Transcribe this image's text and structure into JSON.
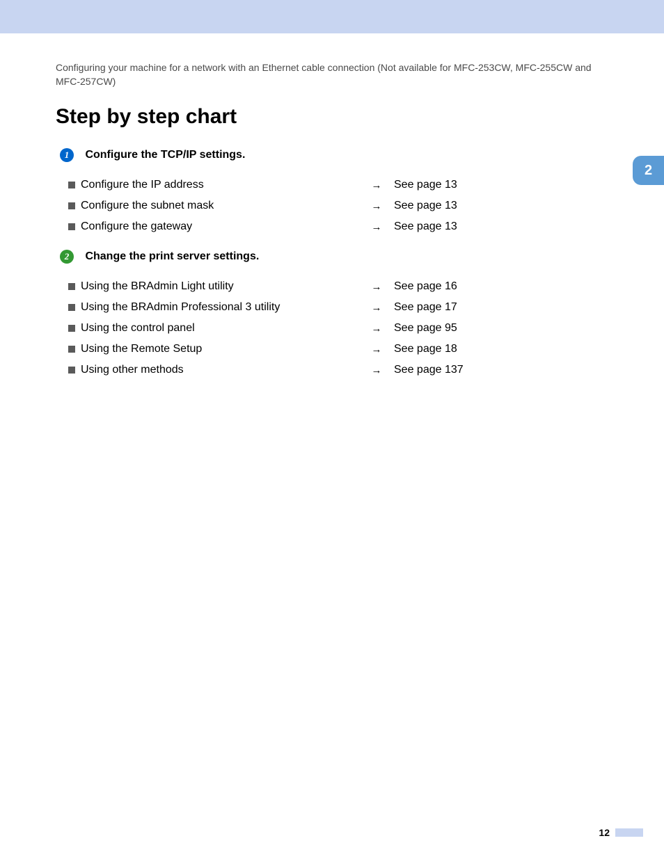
{
  "colors": {
    "top_bar": "#c8d5f1",
    "badge_blue": "#0066cc",
    "badge_green": "#339933",
    "side_tab": "#5b9bd5",
    "square_bullet": "#5a5a5a",
    "text_main": "#000000",
    "text_breadcrumb": "#4a4a4a"
  },
  "breadcrumb": "Configuring your machine for a network with an Ethernet cable connection (Not available for MFC-253CW, MFC-255CW and MFC-257CW)",
  "heading": "Step by step chart",
  "side_tab": "2",
  "page_number": "12",
  "sections": [
    {
      "badge_num": "1",
      "badge_color": "#0066cc",
      "title": "Configure the TCP/IP settings.",
      "items": [
        {
          "label": "Configure the IP address",
          "arrow": "→",
          "ref": "See page 13"
        },
        {
          "label": "Configure the subnet mask",
          "arrow": "→",
          "ref": "See page 13"
        },
        {
          "label": "Configure the gateway",
          "arrow": "→",
          "ref": "See page 13"
        }
      ]
    },
    {
      "badge_num": "2",
      "badge_color": "#339933",
      "title": "Change the print server settings.",
      "items": [
        {
          "label": "Using the BRAdmin Light utility",
          "arrow": "→",
          "ref": "See page 16"
        },
        {
          "label": "Using the BRAdmin Professional 3 utility",
          "arrow": "→",
          "ref": "See page 17"
        },
        {
          "label": "Using the control panel",
          "arrow": "→",
          "ref": "See page 95"
        },
        {
          "label": "Using the Remote Setup",
          "arrow": "→",
          "ref": "See page 18"
        },
        {
          "label": "Using other methods",
          "arrow": "→",
          "ref": "See page 137"
        }
      ]
    }
  ]
}
